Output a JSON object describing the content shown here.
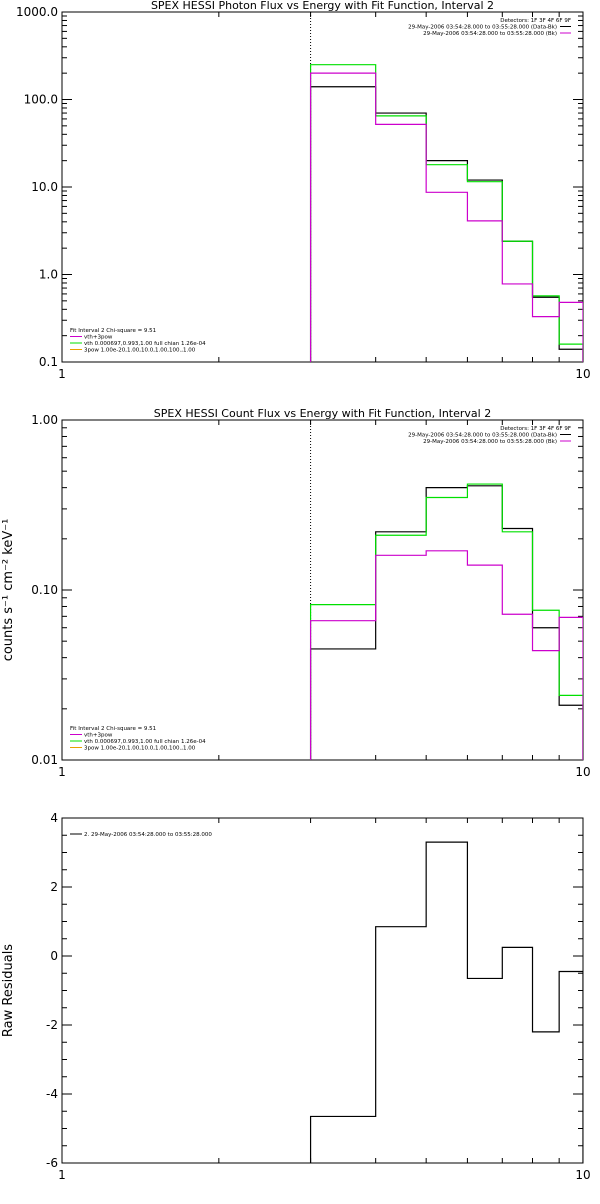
{
  "colors": {
    "black": "#000000",
    "green": "#00e000",
    "magenta": "#cc00cc",
    "orange": "#e8a000"
  },
  "chart_data": [
    {
      "type": "line",
      "title": "SPEX HESSI Photon Flux vs Energy with Fit Function, Interval 2",
      "xlabel": "",
      "ylabel": "",
      "xscale": "log",
      "yscale": "log",
      "xlim": [
        1,
        10
      ],
      "ylim": [
        0.1,
        1000
      ],
      "xticks": [
        {
          "v": 1,
          "label": "1"
        },
        {
          "v": 10,
          "label": "10"
        }
      ],
      "yticks": [
        {
          "v": 0.1,
          "label": "0.1"
        },
        {
          "v": 1,
          "label": "1.0"
        },
        {
          "v": 10,
          "label": "10.0"
        },
        {
          "v": 100,
          "label": "100.0"
        },
        {
          "v": 1000,
          "label": "1000.0"
        }
      ],
      "vline": 3,
      "edges": [
        3,
        4,
        5,
        6,
        7,
        8,
        9,
        10
      ],
      "series": [
        {
          "key": "data",
          "color": "#000000",
          "values": [
            140,
            70,
            20,
            12,
            2.4,
            0.55,
            0.14
          ]
        },
        {
          "key": "model",
          "color": "#00e000",
          "values": [
            250,
            65,
            18,
            11.5,
            2.4,
            0.57,
            0.16
          ]
        },
        {
          "key": "bkg",
          "color": "#cc00cc",
          "values": [
            200,
            52,
            8.7,
            4.1,
            0.78,
            0.33,
            0.48
          ]
        }
      ],
      "legend_top": {
        "title": "Detectors: 1F 3F 4F 6F 9F",
        "entries": [
          {
            "text": "29-May-2006 03:54:28.000 to 03:55:28.000 (Data-Bk)",
            "color": "#000000"
          },
          {
            "text": "29-May-2006 03:54:28.000 to 03:55:28.000 (Bk)",
            "color": "#cc00cc"
          }
        ]
      },
      "legend_bottom": {
        "title": "Fit Interval 2   Chi-square = 9.51",
        "entries": [
          {
            "text": "vth+3pow",
            "color": "#cc00cc"
          },
          {
            "text": "vth 0.000697,0.993,1.00   full chian 1.26e-04",
            "color": "#00e000"
          },
          {
            "text": "3pow 1.00e-20,1.00,10.0,1.00,100.,1.00",
            "color": "#e8a000"
          }
        ]
      }
    },
    {
      "type": "line",
      "title": "SPEX HESSI Count Flux vs Energy with Fit Function, Interval 2",
      "xlabel": "",
      "ylabel": "counts s⁻¹ cm⁻² keV⁻¹",
      "xscale": "log",
      "yscale": "log",
      "xlim": [
        1,
        10
      ],
      "ylim": [
        0.01,
        1
      ],
      "xticks": [
        {
          "v": 1,
          "label": "1"
        },
        {
          "v": 10,
          "label": "10"
        }
      ],
      "yticks": [
        {
          "v": 0.01,
          "label": "0.01"
        },
        {
          "v": 0.1,
          "label": "0.10"
        },
        {
          "v": 1,
          "label": "1.00"
        }
      ],
      "vline": 3,
      "edges": [
        3,
        4,
        5,
        6,
        7,
        8,
        9,
        10
      ],
      "series": [
        {
          "key": "data",
          "color": "#000000",
          "values": [
            0.045,
            0.22,
            0.4,
            0.41,
            0.23,
            0.06,
            0.021
          ]
        },
        {
          "key": "model",
          "color": "#00e000",
          "values": [
            0.082,
            0.21,
            0.35,
            0.42,
            0.22,
            0.076,
            0.024
          ]
        },
        {
          "key": "bkg",
          "color": "#cc00cc",
          "values": [
            0.066,
            0.16,
            0.17,
            0.14,
            0.072,
            0.044,
            0.069
          ]
        }
      ],
      "legend_top": {
        "title": "Detectors: 1F 3F 4F 6F 9F",
        "entries": [
          {
            "text": "29-May-2006 03:54:28.000 to 03:55:28.000 (Data-Bk)",
            "color": "#000000"
          },
          {
            "text": "29-May-2006 03:54:28.000 to 03:55:28.000 (Bk)",
            "color": "#cc00cc"
          }
        ]
      },
      "legend_bottom": {
        "title": "Fit Interval 2   Chi-square = 9.51",
        "entries": [
          {
            "text": "vth+3pow",
            "color": "#cc00cc"
          },
          {
            "text": "vth 0.000697,0.993,1.00   full chian 1.26e-04",
            "color": "#00e000"
          },
          {
            "text": "3pow 1.00e-20,1.00,10.0,1.00,100.,1.00",
            "color": "#e8a000"
          }
        ]
      }
    },
    {
      "type": "line",
      "title": "",
      "xlabel": "",
      "ylabel": "Raw Residuals",
      "xscale": "log",
      "yscale": "linear",
      "xlim": [
        1,
        10
      ],
      "ylim": [
        -6,
        4
      ],
      "xticks": [
        {
          "v": 1,
          "label": "1"
        },
        {
          "v": 10,
          "label": "10"
        }
      ],
      "yticks": [
        {
          "v": -6,
          "label": "-6"
        },
        {
          "v": -4,
          "label": "-4"
        },
        {
          "v": -2,
          "label": "-2"
        },
        {
          "v": 0,
          "label": "0"
        },
        {
          "v": 2,
          "label": "2"
        },
        {
          "v": 4,
          "label": "4"
        }
      ],
      "edges": [
        3,
        4,
        5,
        6,
        7,
        8,
        9,
        10
      ],
      "series": [
        {
          "key": "residuals",
          "color": "#000000",
          "values": [
            -4.65,
            0.85,
            3.3,
            -0.65,
            0.25,
            -2.2,
            -0.45
          ]
        }
      ],
      "legend_top_left": {
        "entries": [
          {
            "text": "2. 29-May-2006 03:54:28.000 to 03:55:28.000",
            "color": "#000000"
          }
        ]
      }
    }
  ]
}
